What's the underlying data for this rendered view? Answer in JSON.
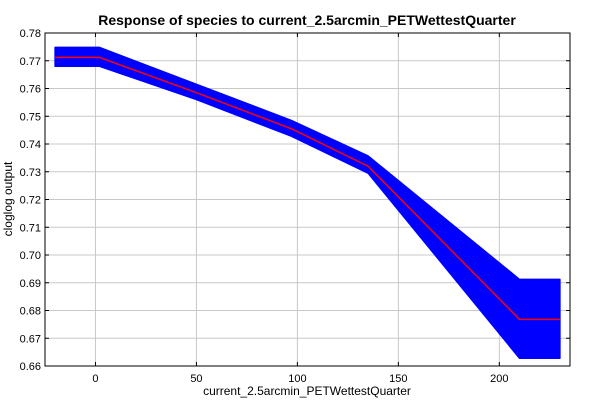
{
  "chart_data": {
    "type": "line",
    "title": "Response of species to current_2.5arcmin_PETWettestQuarter",
    "xlabel": "current_2.5arcmin_PETWettestQuarter",
    "ylabel": "cloglog output",
    "xlim": [
      -25,
      235
    ],
    "ylim": [
      0.66,
      0.78
    ],
    "x_ticks": [
      0,
      50,
      100,
      150,
      200
    ],
    "y_ticks": [
      0.66,
      0.67,
      0.68,
      0.69,
      0.7,
      0.71,
      0.72,
      0.73,
      0.74,
      0.75,
      0.76,
      0.77,
      0.78
    ],
    "grid": true,
    "series": [
      {
        "type": "line",
        "color": "#ff0000",
        "x": [
          -20,
          2,
          50,
          97,
          135,
          210,
          230
        ],
        "y": [
          0.7712,
          0.7712,
          0.7585,
          0.7455,
          0.732,
          0.6768,
          0.6768
        ]
      },
      {
        "type": "band",
        "color": "#0000ff",
        "x": [
          -20,
          2,
          50,
          97,
          135,
          210,
          230
        ],
        "lower": [
          0.768,
          0.768,
          0.756,
          0.7428,
          0.7295,
          0.6628,
          0.6628
        ],
        "upper": [
          0.7748,
          0.7748,
          0.7615,
          0.7485,
          0.7357,
          0.6912,
          0.6912
        ]
      }
    ]
  }
}
